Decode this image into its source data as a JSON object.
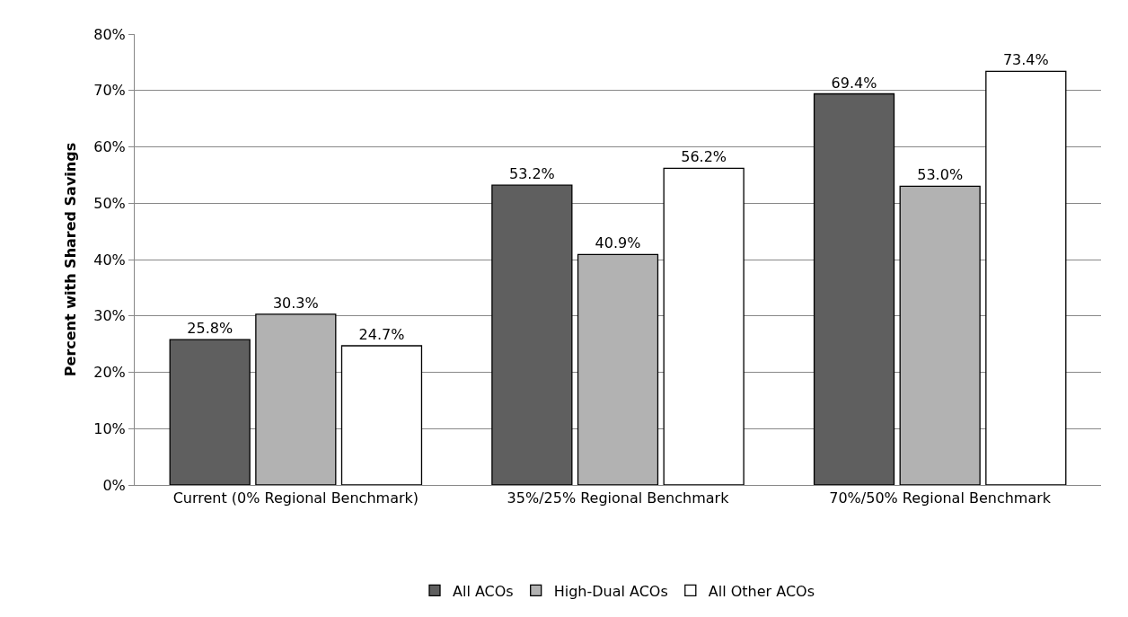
{
  "chart_data": {
    "type": "bar",
    "ylabel": "Percent with Shared Savings",
    "categories": [
      "Current (0% Regional Benchmark)",
      "35%/25% Regional Benchmark",
      "70%/50% Regional Benchmark"
    ],
    "series": [
      {
        "name": "All ACOs",
        "color": "#5f5f5f",
        "values": [
          25.8,
          53.2,
          69.4
        ],
        "value_labels": [
          "25.8%",
          "53.2%",
          "69.4%"
        ]
      },
      {
        "name": "High-Dual ACOs",
        "color": "#b2b2b2",
        "values": [
          30.3,
          40.9,
          53.0
        ],
        "value_labels": [
          "30.3%",
          "40.9%",
          "53.0%"
        ]
      },
      {
        "name": "All Other ACOs",
        "color": "#ffffff",
        "values": [
          24.7,
          56.2,
          73.4
        ],
        "value_labels": [
          "24.7%",
          "56.2%",
          "73.4%"
        ]
      }
    ],
    "ylim": [
      0,
      80
    ],
    "yticks": [
      {
        "value": 0,
        "label": "0%"
      },
      {
        "value": 10,
        "label": "10%"
      },
      {
        "value": 20,
        "label": "20%"
      },
      {
        "value": 30,
        "label": "30%"
      },
      {
        "value": 40,
        "label": "40%"
      },
      {
        "value": 50,
        "label": "50%"
      },
      {
        "value": 60,
        "label": "60%"
      },
      {
        "value": 70,
        "label": "70%"
      },
      {
        "value": 80,
        "label": "80%"
      }
    ],
    "grid": "y",
    "legend": "bottom"
  }
}
